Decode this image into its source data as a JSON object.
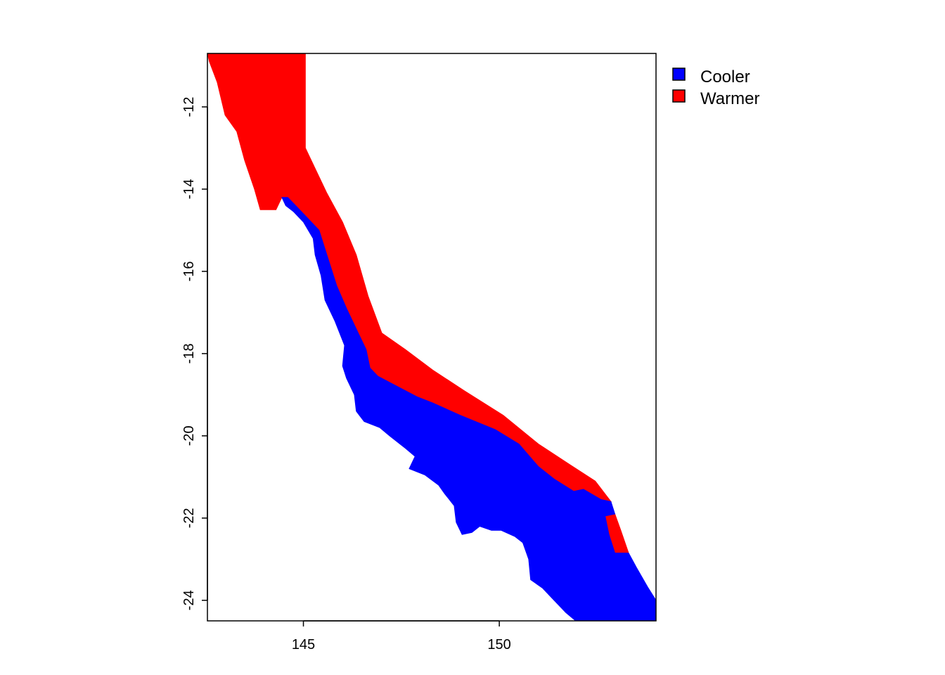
{
  "map": {
    "x_ticks": [
      {
        "value": 145,
        "label": "145"
      },
      {
        "value": 150,
        "label": "150"
      }
    ],
    "y_ticks": [
      {
        "value": -12,
        "label": "-12"
      },
      {
        "value": -14,
        "label": "-14"
      },
      {
        "value": -16,
        "label": "-16"
      },
      {
        "value": -18,
        "label": "-18"
      },
      {
        "value": -20,
        "label": "-20"
      },
      {
        "value": -22,
        "label": "-22"
      },
      {
        "value": -24,
        "label": "-24"
      }
    ],
    "xlim": [
      142.55,
      154.0
    ],
    "ylim": [
      -24.5,
      -10.7
    ],
    "legend": {
      "position": "top-right",
      "items": [
        {
          "label": "Cooler",
          "color": "#0000FF"
        },
        {
          "label": "Warmer",
          "color": "#FF0000"
        }
      ]
    },
    "regions": {
      "warmer": {
        "color": "#FF0000",
        "outline": [
          [
            142.55,
            -10.7
          ],
          [
            145.05,
            -10.7
          ],
          [
            145.05,
            -13.0
          ],
          [
            145.3,
            -13.5
          ],
          [
            145.6,
            -14.1
          ],
          [
            146.0,
            -14.8
          ],
          [
            146.35,
            -15.6
          ],
          [
            146.65,
            -16.6
          ],
          [
            147.0,
            -17.5
          ],
          [
            147.6,
            -17.9
          ],
          [
            148.3,
            -18.4
          ],
          [
            149.1,
            -18.9
          ],
          [
            150.1,
            -19.5
          ],
          [
            151.0,
            -20.2
          ],
          [
            151.8,
            -20.7
          ],
          [
            152.45,
            -21.1
          ],
          [
            152.85,
            -21.6
          ],
          [
            152.6,
            -21.55
          ],
          [
            152.15,
            -21.3
          ],
          [
            151.9,
            -21.35
          ],
          [
            151.4,
            -21.05
          ],
          [
            151.0,
            -20.75
          ],
          [
            150.5,
            -20.2
          ],
          [
            149.9,
            -19.85
          ],
          [
            149.0,
            -19.5
          ],
          [
            148.3,
            -19.2
          ],
          [
            147.9,
            -19.05
          ],
          [
            147.3,
            -18.75
          ],
          [
            146.9,
            -18.55
          ],
          [
            146.7,
            -18.35
          ],
          [
            146.6,
            -17.9
          ],
          [
            146.4,
            -17.5
          ],
          [
            146.1,
            -16.9
          ],
          [
            145.85,
            -16.35
          ],
          [
            145.6,
            -15.6
          ],
          [
            145.4,
            -15.0
          ],
          [
            145.1,
            -14.7
          ],
          [
            144.8,
            -14.4
          ],
          [
            144.6,
            -14.2
          ],
          [
            144.45,
            -14.2
          ],
          [
            144.3,
            -14.5
          ],
          [
            143.9,
            -14.5
          ],
          [
            143.75,
            -14.0
          ],
          [
            143.5,
            -13.3
          ],
          [
            143.3,
            -12.6
          ],
          [
            143.0,
            -12.2
          ],
          [
            142.8,
            -11.4
          ],
          [
            142.6,
            -10.9
          ]
        ]
      },
      "warmer_patch": {
        "color": "#FF0000",
        "outline": [
          [
            152.7,
            -21.95
          ],
          [
            152.95,
            -21.9
          ],
          [
            153.1,
            -22.3
          ],
          [
            153.3,
            -22.85
          ],
          [
            152.95,
            -22.85
          ],
          [
            152.8,
            -22.4
          ]
        ]
      },
      "cooler": {
        "color": "#0000FF",
        "outline": [
          [
            144.45,
            -14.2
          ],
          [
            144.6,
            -14.2
          ],
          [
            144.8,
            -14.4
          ],
          [
            145.1,
            -14.7
          ],
          [
            145.4,
            -15.0
          ],
          [
            145.6,
            -15.6
          ],
          [
            145.85,
            -16.35
          ],
          [
            146.1,
            -16.9
          ],
          [
            146.4,
            -17.5
          ],
          [
            146.6,
            -17.9
          ],
          [
            146.7,
            -18.35
          ],
          [
            146.9,
            -18.55
          ],
          [
            147.3,
            -18.75
          ],
          [
            147.9,
            -19.05
          ],
          [
            148.3,
            -19.2
          ],
          [
            149.0,
            -19.5
          ],
          [
            149.9,
            -19.85
          ],
          [
            150.5,
            -20.2
          ],
          [
            151.0,
            -20.75
          ],
          [
            151.4,
            -21.05
          ],
          [
            151.9,
            -21.35
          ],
          [
            152.15,
            -21.3
          ],
          [
            152.6,
            -21.55
          ],
          [
            152.85,
            -21.6
          ],
          [
            152.95,
            -21.9
          ],
          [
            152.7,
            -21.95
          ],
          [
            152.8,
            -22.4
          ],
          [
            152.95,
            -22.85
          ],
          [
            153.3,
            -22.85
          ],
          [
            153.5,
            -23.2
          ],
          [
            153.8,
            -23.7
          ],
          [
            154.0,
            -24.0
          ],
          [
            154.0,
            -24.5
          ],
          [
            151.95,
            -24.5
          ],
          [
            151.7,
            -24.3
          ],
          [
            151.4,
            -24.0
          ],
          [
            151.1,
            -23.7
          ],
          [
            150.8,
            -23.5
          ],
          [
            150.75,
            -23.0
          ],
          [
            150.6,
            -22.6
          ],
          [
            150.4,
            -22.45
          ],
          [
            150.05,
            -22.3
          ],
          [
            149.8,
            -22.3
          ],
          [
            149.5,
            -22.2
          ],
          [
            149.3,
            -22.35
          ],
          [
            149.05,
            -22.4
          ],
          [
            148.9,
            -22.1
          ],
          [
            148.85,
            -21.7
          ],
          [
            148.6,
            -21.4
          ],
          [
            148.45,
            -21.2
          ],
          [
            148.1,
            -20.95
          ],
          [
            147.7,
            -20.8
          ],
          [
            147.85,
            -20.5
          ],
          [
            147.6,
            -20.3
          ],
          [
            147.2,
            -20.0
          ],
          [
            146.95,
            -19.8
          ],
          [
            146.55,
            -19.65
          ],
          [
            146.35,
            -19.4
          ],
          [
            146.3,
            -19.0
          ],
          [
            146.1,
            -18.6
          ],
          [
            146.0,
            -18.3
          ],
          [
            146.05,
            -17.8
          ],
          [
            145.8,
            -17.2
          ],
          [
            145.55,
            -16.7
          ],
          [
            145.45,
            -16.1
          ],
          [
            145.3,
            -15.6
          ],
          [
            145.25,
            -15.2
          ],
          [
            145.0,
            -14.8
          ],
          [
            144.75,
            -14.55
          ],
          [
            144.55,
            -14.4
          ]
        ]
      }
    }
  }
}
